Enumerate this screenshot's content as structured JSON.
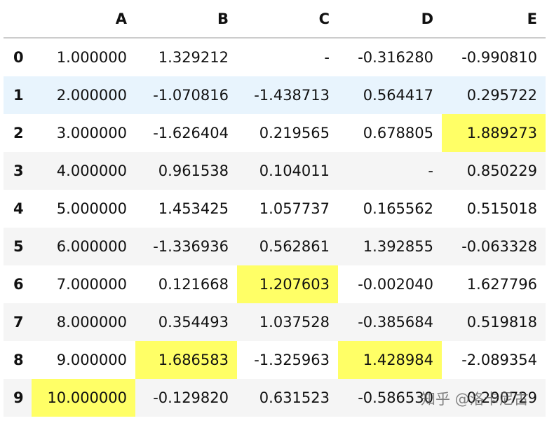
{
  "table": {
    "header": [
      "",
      "A",
      "B",
      "C",
      "D",
      "E"
    ],
    "rows": [
      [
        "0",
        "1.000000",
        "1.329212",
        "-",
        "-0.316280",
        "-0.990810"
      ],
      [
        "1",
        "2.000000",
        "-1.070816",
        "-1.438713",
        "0.564417",
        "0.295722"
      ],
      [
        "2",
        "3.000000",
        "-1.626404",
        "0.219565",
        "0.678805",
        "1.889273"
      ],
      [
        "3",
        "4.000000",
        "0.961538",
        "0.104011",
        "-",
        "0.850229"
      ],
      [
        "4",
        "5.000000",
        "1.453425",
        "1.057737",
        "0.165562",
        "0.515018"
      ],
      [
        "5",
        "6.000000",
        "-1.336936",
        "0.562861",
        "1.392855",
        "-0.063328"
      ],
      [
        "6",
        "7.000000",
        "0.121668",
        "1.207603",
        "-0.002040",
        "1.627796"
      ],
      [
        "7",
        "8.000000",
        "0.354493",
        "1.037528",
        "-0.385684",
        "0.519818"
      ],
      [
        "8",
        "9.000000",
        "1.686583",
        "-1.325963",
        "1.428984",
        "-2.089354"
      ],
      [
        "9",
        "10.000000",
        "-0.129820",
        "0.631523",
        "-0.586530",
        "0.290729"
      ]
    ],
    "highlight_color": "#ffff66",
    "highlighted_cells": [
      [
        2,
        5
      ],
      [
        6,
        3
      ],
      [
        8,
        2
      ],
      [
        8,
        4
      ],
      [
        9,
        1
      ]
    ],
    "hover_row": 1,
    "hover_color": "#e8f4fd",
    "stripe_color": "#f5f5f5"
  },
  "watermark": "知乎 @洛卡尼古"
}
